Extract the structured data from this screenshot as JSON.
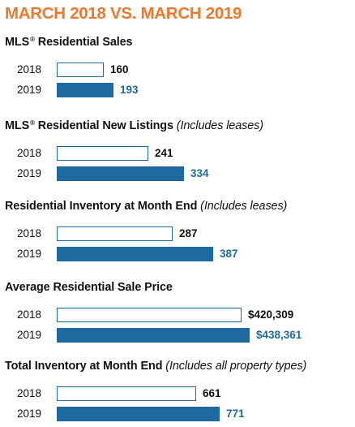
{
  "title": "MARCH 2018 VS. MARCH 2019",
  "colors": {
    "title": "#f0782a",
    "bar_2019": "#1e6aa0",
    "bar_2018_outline": "#1e6aa0"
  },
  "chart_data": [
    {
      "type": "bar",
      "title": "MLS",
      "title_mark": "®",
      "title_rest": " Residential Sales",
      "note": "",
      "categories": [
        "2018",
        "2019"
      ],
      "values": [
        160,
        193
      ],
      "labels": [
        "160",
        "193"
      ]
    },
    {
      "type": "bar",
      "title": "MLS",
      "title_mark": "®",
      "title_rest": " Residential New Listings",
      "note": "(Includes leases)",
      "categories": [
        "2018",
        "2019"
      ],
      "values": [
        241,
        334
      ],
      "labels": [
        "241",
        "334"
      ]
    },
    {
      "type": "bar",
      "title": "Residential Inventory at Month End",
      "title_mark": "",
      "title_rest": "",
      "note": "(Includes leases)",
      "categories": [
        "2018",
        "2019"
      ],
      "values": [
        287,
        387
      ],
      "labels": [
        "287",
        "387"
      ]
    },
    {
      "type": "bar",
      "title": "Average Residential Sale Price",
      "title_mark": "",
      "title_rest": "",
      "note": "",
      "categories": [
        "2018",
        "2019"
      ],
      "values": [
        420309,
        438361
      ],
      "labels": [
        "$420,309",
        "$438,361"
      ]
    },
    {
      "type": "bar",
      "title": "Total Inventory at Month End",
      "title_mark": "",
      "title_rest": "",
      "note": "(Includes all property types)",
      "categories": [
        "2018",
        "2019"
      ],
      "values": [
        661,
        771
      ],
      "labels": [
        "661",
        "771"
      ]
    }
  ]
}
